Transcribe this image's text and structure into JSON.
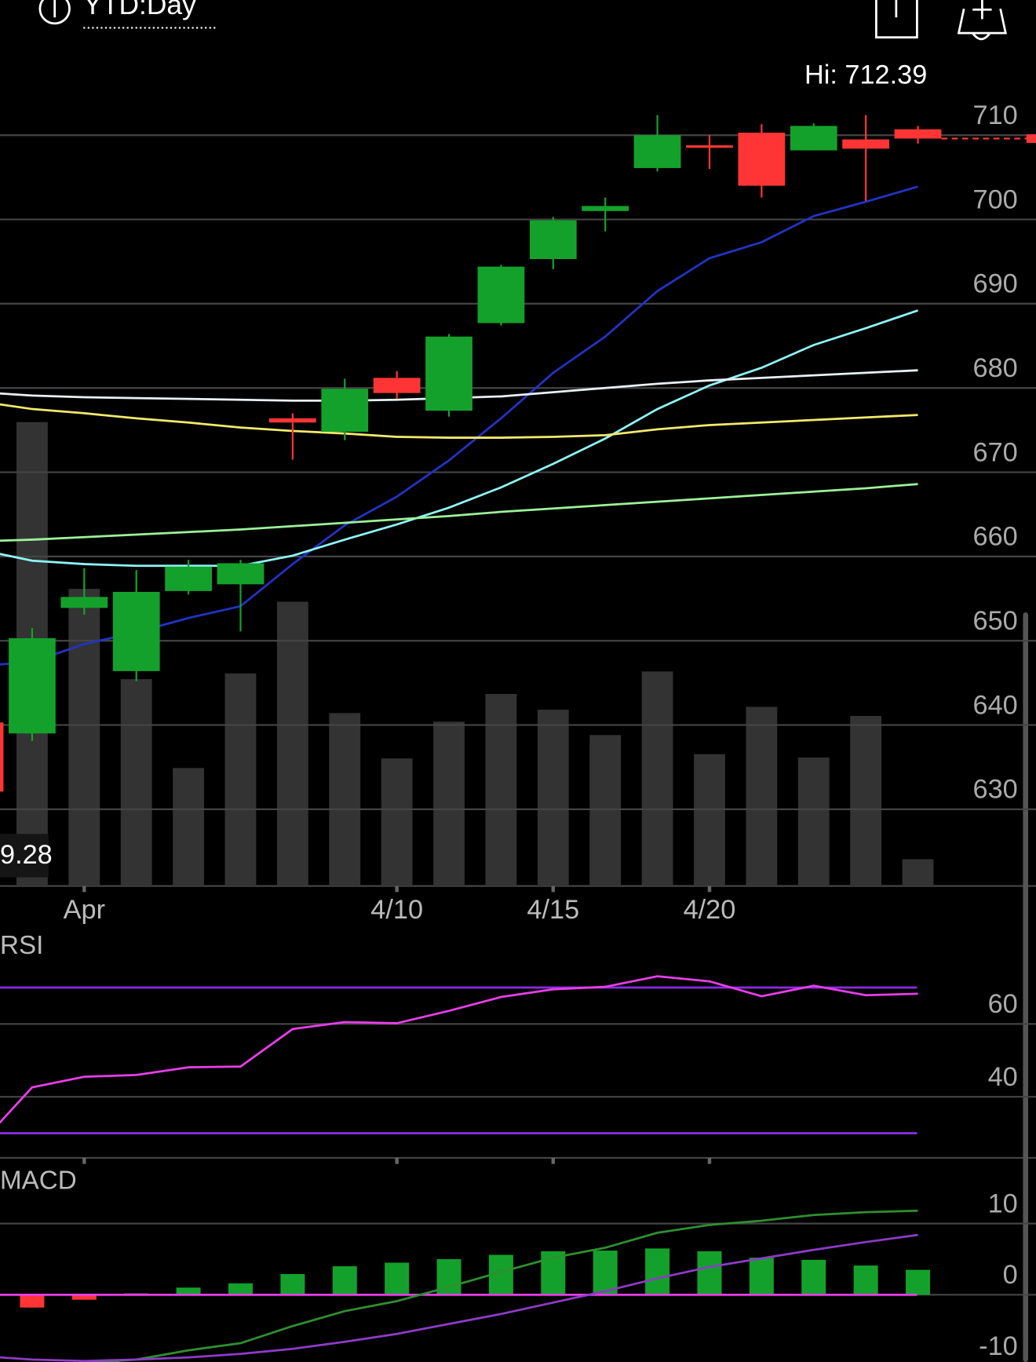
{
  "header": {
    "range": "YTD:Day"
  },
  "chart_data": [
    {
      "type": "candlestick",
      "categories": [
        null,
        null,
        "Apr",
        null,
        null,
        null,
        null,
        null,
        "4/10",
        null,
        null,
        "4/15",
        null,
        null,
        "4/20",
        null,
        null,
        null,
        null
      ],
      "open": [
        640.3,
        639.0,
        653.9,
        646.4,
        655.9,
        656.7,
        676.4,
        674.8,
        681.2,
        677.3,
        687.7,
        695.3,
        701.0,
        706.1,
        708.8,
        710.3,
        708.2,
        709.5,
        710.7
      ],
      "high": [
        641,
        651.5,
        658.6,
        658.4,
        659.6,
        659.6,
        677.0,
        681.1,
        682.0,
        686.4,
        694.6,
        700.3,
        702.6,
        712.39,
        710.0,
        711.3,
        711.4,
        712.4,
        711.1
      ],
      "low": [
        631,
        638.1,
        653.1,
        645.2,
        655.5,
        651.1,
        671.5,
        673.8,
        678.7,
        676.6,
        687.4,
        694.1,
        698.6,
        705.7,
        706.0,
        702.6,
        708.2,
        702.2,
        709.0
      ],
      "close": [
        632.1,
        650.3,
        655.2,
        655.8,
        658.8,
        659.2,
        675.9,
        679.9,
        679.4,
        686.1,
        694.4,
        699.9,
        701.6,
        710.0,
        708.5,
        704.0,
        711.1,
        708.4,
        709.6
      ],
      "up_color": "#14a12b",
      "down_color": "#ff3535",
      "ylim": [
        621,
        718
      ],
      "yticks": [
        710,
        700,
        690,
        680,
        670,
        660,
        650,
        640,
        630
      ],
      "grid": true,
      "annotation": "Hi: 712.39",
      "price_label": "9.28",
      "lines": [
        {
          "color": "#2233c4",
          "values": [
            647.0,
            647.5,
            649.6,
            651.0,
            652.7,
            654.1,
            659.1,
            663.7,
            667.1,
            671.4,
            676.4,
            681.8,
            686.1,
            691.5,
            695.4,
            697.3,
            700.4,
            702.1,
            703.9
          ]
        },
        {
          "color": "#8ff5f5",
          "values": [
            660.8,
            659.5,
            659.1,
            658.9,
            658.9,
            658.9,
            660.1,
            662.0,
            663.8,
            665.8,
            668.2,
            671.0,
            674.0,
            677.5,
            680.3,
            682.4,
            685.1,
            687.1,
            689.2
          ]
        },
        {
          "color": "#e8f0f5",
          "values": [
            679.5,
            679.1,
            678.9,
            678.8,
            678.7,
            678.6,
            678.5,
            678.5,
            678.6,
            678.8,
            679.0,
            679.5,
            680.0,
            680.5,
            680.9,
            681.2,
            681.5,
            681.8,
            682.1
          ]
        },
        {
          "color": "#f2e96b",
          "values": [
            678.4,
            677.5,
            677.0,
            676.4,
            675.9,
            675.3,
            674.9,
            674.6,
            674.2,
            674.1,
            674.1,
            674.2,
            674.4,
            675.1,
            675.6,
            675.9,
            676.2,
            676.5,
            676.8
          ]
        },
        {
          "color": "#9cf29a",
          "values": [
            661.8,
            662.0,
            662.3,
            662.6,
            662.9,
            663.2,
            663.6,
            664.0,
            664.4,
            664.8,
            665.3,
            665.7,
            666.1,
            666.5,
            666.9,
            667.3,
            667.7,
            668.1,
            668.6
          ]
        }
      ],
      "volume": {
        "color": "#333333",
        "ylim": [
          0,
          100
        ],
        "values": [
          null,
          97.1,
          62.2,
          43.3,
          24.7,
          44.5,
          59.5,
          36.2,
          26.7,
          34.4,
          40.2,
          36.9,
          31.6,
          44.9,
          27.6,
          37.5,
          26.9,
          35.6,
          5.6
        ]
      }
    },
    {
      "type": "line",
      "title": "RSI",
      "color": "#e83ee8",
      "values": [
        27,
        42.6,
        45.5,
        46.0,
        48.1,
        48.3,
        58.6,
        60.5,
        60.2,
        63.6,
        67.4,
        69.5,
        70.2,
        73.1,
        71.7,
        67.6,
        70.5,
        67.9,
        68.3
      ],
      "ylim": [
        23,
        85
      ],
      "yticks": [
        60,
        40
      ],
      "grid": true,
      "reference_lines": [
        70,
        30
      ],
      "reference_color": "#8a2be2"
    },
    {
      "type": "macd",
      "title": "MACD",
      "histogram": [
        null,
        -1.8,
        -0.7,
        0.2,
        1.0,
        1.6,
        2.9,
        4.0,
        4.5,
        5.0,
        5.6,
        6.1,
        6.2,
        6.5,
        6.1,
        5.2,
        4.9,
        4.1,
        3.5
      ],
      "bar_colors": [
        null,
        "#ff3535",
        "#ff3535",
        "#555555",
        "#14a12b",
        "#14a12b",
        "#14a12b",
        "#14a12b",
        "#14a12b",
        "#14a12b",
        "#14a12b",
        "#14a12b",
        "#14a12b",
        "#14a12b",
        "#14a12b",
        "#14a12b",
        "#14a12b",
        "#14a12b",
        "#14a12b"
      ],
      "macd": {
        "color": "#2f8f2f",
        "values": [
          null,
          -10.2,
          -9.6,
          -9.1,
          -7.8,
          -6.8,
          -4.4,
          -2.3,
          -0.9,
          1.1,
          3.2,
          5.2,
          6.6,
          8.7,
          9.8,
          10.4,
          11.2,
          11.6,
          11.8
        ]
      },
      "signal": {
        "color": "#8e3bc8",
        "values": [
          -8.6,
          -9.1,
          -9.3,
          -9.1,
          -8.8,
          -8.3,
          -7.6,
          -6.6,
          -5.5,
          -4.1,
          -2.7,
          -1.1,
          0.5,
          2.3,
          3.9,
          5.1,
          6.3,
          7.4,
          8.4
        ]
      },
      "zero_color": "#e83ee8",
      "ylim": [
        -12,
        18
      ],
      "yticks": [
        10,
        0,
        -10
      ],
      "grid": true
    }
  ]
}
